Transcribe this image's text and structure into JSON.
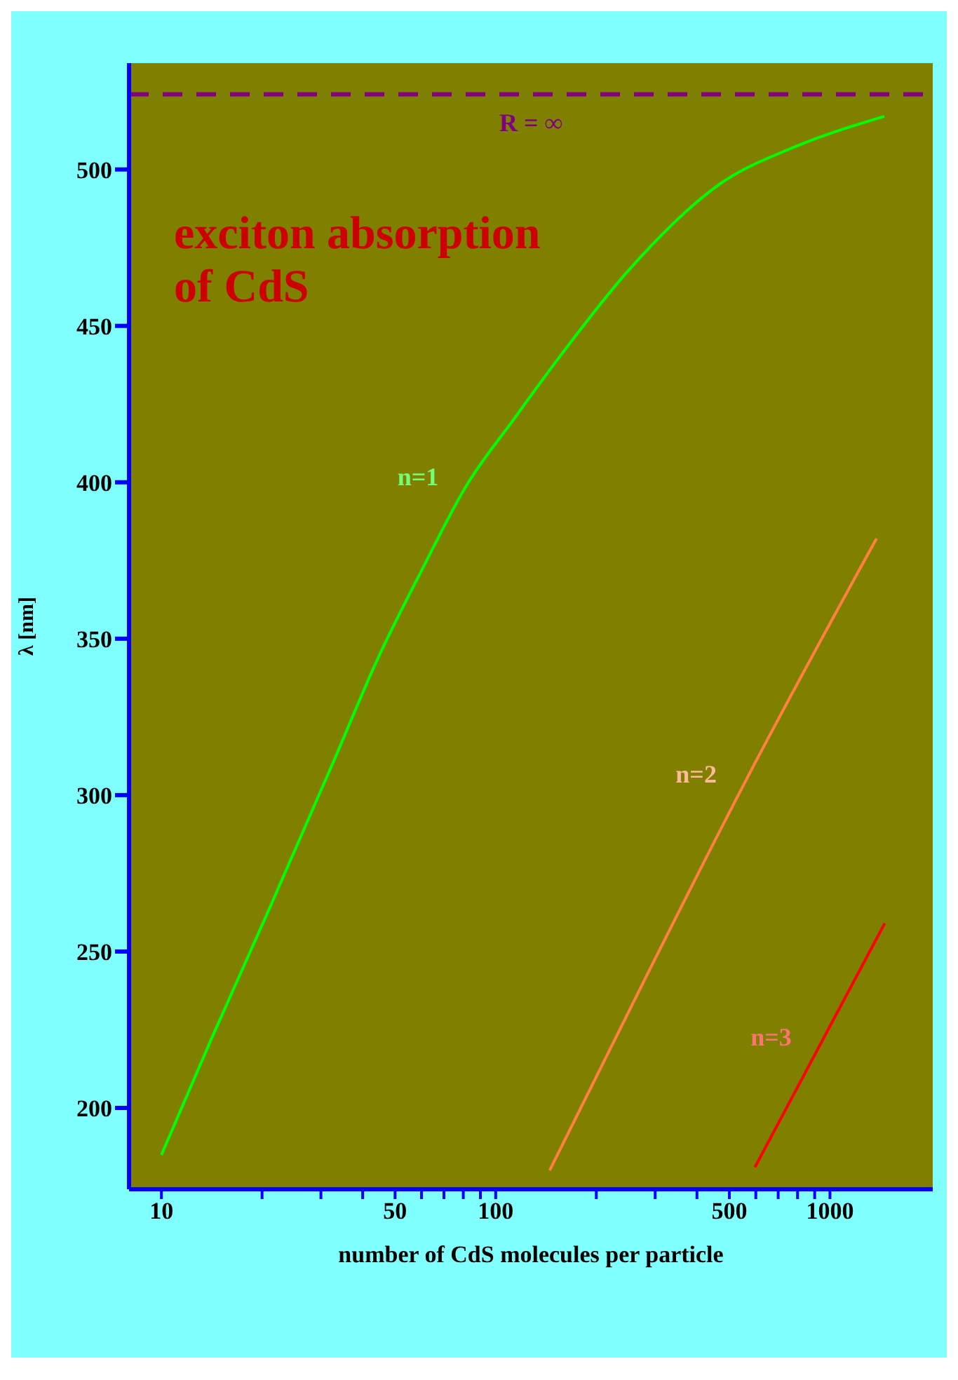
{
  "chart_data": {
    "type": "line",
    "title": "exciton absorption of CdS",
    "xlabel": "number of CdS molecules per particle",
    "ylabel": "λ [nm]",
    "log": "x",
    "grid": false,
    "legend": false,
    "marker": "none",
    "line_style": "solid",
    "xlim": [
      8,
      2030
    ],
    "ylim": [
      174,
      534
    ],
    "xticks": [
      10,
      {
        "value": 20,
        "label": null
      },
      {
        "value": 30,
        "label": null
      },
      {
        "value": 40,
        "label": null
      },
      50,
      {
        "value": 60,
        "label": null
      },
      {
        "value": 70,
        "label": null
      },
      {
        "value": 80,
        "label": null
      },
      {
        "value": 90,
        "label": null
      },
      100,
      {
        "value": 200,
        "label": null
      },
      {
        "value": 300,
        "label": null
      },
      {
        "value": 400,
        "label": null
      },
      500,
      {
        "value": 600,
        "label": null
      },
      {
        "value": 700,
        "label": null
      },
      {
        "value": 800,
        "label": null
      },
      {
        "value": 900,
        "label": null
      },
      1000
    ],
    "yticks": [
      200,
      250,
      300,
      350,
      400,
      450,
      500
    ],
    "series": [
      {
        "name": "n=1",
        "color": "#00ff00",
        "x": [
          10,
          14.1,
          20.7,
          32.5,
          45,
          59.5,
          81.8,
          113,
          155,
          251,
          478,
          776,
          1455
        ],
        "values": [
          185,
          222,
          262,
          310,
          345,
          371,
          399,
          420,
          440,
          468,
          496,
          507,
          517
        ]
      },
      {
        "name": "n=2",
        "color": "#ff8040",
        "x": [
          145,
          279,
          556,
          1378
        ],
        "values": [
          180,
          241,
          304,
          382
        ]
      },
      {
        "name": "n=3",
        "color": "#ff0000",
        "x": [
          596,
          1458
        ],
        "values": [
          181,
          259
        ]
      }
    ],
    "ref_lines": [
      {
        "axis": "y",
        "value": 524,
        "label": "R = ∞",
        "color": "#800080",
        "line_style": "dashed"
      }
    ]
  }
}
